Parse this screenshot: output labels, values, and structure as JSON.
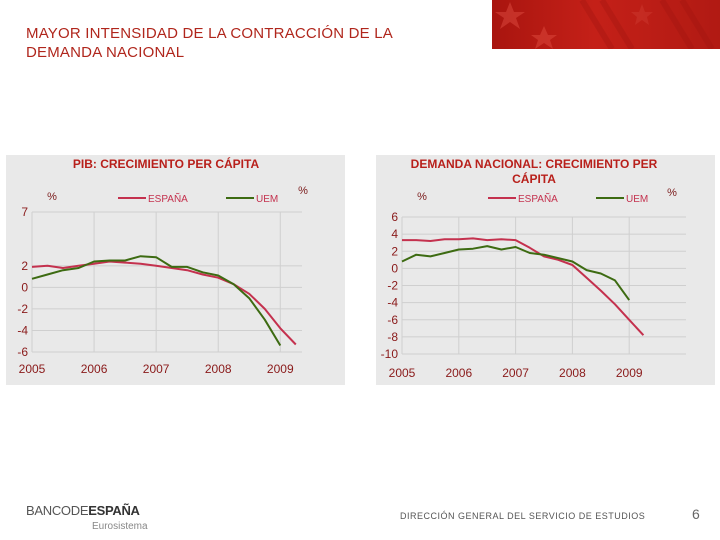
{
  "slide": {
    "title": "MAYOR INTENSIDAD DE LA CONTRACCIÓN DE LA DEMANDA NACIONAL",
    "page_number": "6"
  },
  "footer": {
    "logo_part1": "BANCODE",
    "logo_part2": "ESPAÑA",
    "logo_subtitle": "Eurosistema",
    "department": "DIRECCIÓN GENERAL DEL SERVICIO DE ESTUDIOS"
  },
  "colors": {
    "accent": "#b0261c",
    "espana": "#c4314e",
    "uem": "#3d6b12",
    "chart_title": "#b8201b",
    "panel": "#e9e9e9"
  },
  "chart_data": [
    {
      "type": "line",
      "title": "PIB: CRECIMIENTO PER CÁPITA",
      "ylabel": "%",
      "ylabel_right": "%",
      "ylim": [
        -6,
        7
      ],
      "yticks": [
        7,
        2,
        0,
        -2,
        -4,
        -6
      ],
      "xlim": [
        2005,
        2009.35
      ],
      "xticks": [
        "2005",
        "2006",
        "2007",
        "2008",
        "2009"
      ],
      "xtick_values": [
        2005,
        2006,
        2007,
        2008,
        2009
      ],
      "series": [
        {
          "name": "ESPAÑA",
          "x": [
            2005,
            2005.25,
            2005.5,
            2005.75,
            2006,
            2006.25,
            2006.5,
            2006.75,
            2007,
            2007.25,
            2007.5,
            2007.75,
            2008,
            2008.25,
            2008.5,
            2008.75,
            2009,
            2009.25
          ],
          "values": [
            1.9,
            2.0,
            1.8,
            2.0,
            2.2,
            2.4,
            2.3,
            2.2,
            2.0,
            1.8,
            1.6,
            1.2,
            0.9,
            0.3,
            -0.6,
            -2.0,
            -3.8,
            -5.3
          ]
        },
        {
          "name": "UEM",
          "x": [
            2005,
            2005.25,
            2005.5,
            2005.75,
            2006,
            2006.25,
            2006.5,
            2006.75,
            2007,
            2007.25,
            2007.5,
            2007.75,
            2008,
            2008.25,
            2008.5,
            2008.75,
            2009
          ],
          "values": [
            0.8,
            1.2,
            1.6,
            1.8,
            2.4,
            2.5,
            2.5,
            2.9,
            2.8,
            1.9,
            1.9,
            1.4,
            1.1,
            0.3,
            -1.0,
            -3.0,
            -5.4
          ]
        }
      ]
    },
    {
      "type": "line",
      "title": "DEMANDA NACIONAL: CRECIMIENTO PER CÁPITA",
      "ylabel": "%",
      "ylabel_right": "%",
      "ylim": [
        -10,
        6
      ],
      "yticks": [
        6,
        4,
        2,
        0,
        -2,
        -4,
        -6,
        -8,
        -10
      ],
      "xlim": [
        2005,
        2010
      ],
      "xticks": [
        "2005",
        "2006",
        "2007",
        "2008",
        "2009"
      ],
      "xtick_values": [
        2005,
        2006,
        2007,
        2008,
        2009
      ],
      "series": [
        {
          "name": "ESPAÑA",
          "x": [
            2005,
            2005.25,
            2005.5,
            2005.75,
            2006,
            2006.25,
            2006.5,
            2006.75,
            2007,
            2007.25,
            2007.5,
            2007.75,
            2008,
            2008.25,
            2008.5,
            2008.75,
            2009,
            2009.25
          ],
          "values": [
            3.3,
            3.3,
            3.2,
            3.4,
            3.4,
            3.5,
            3.3,
            3.4,
            3.3,
            2.4,
            1.4,
            1.0,
            0.4,
            -1.1,
            -2.6,
            -4.2,
            -6.0,
            -7.8
          ]
        },
        {
          "name": "UEM",
          "x": [
            2005,
            2005.25,
            2005.5,
            2005.75,
            2006,
            2006.25,
            2006.5,
            2006.75,
            2007,
            2007.25,
            2007.5,
            2007.75,
            2008,
            2008.25,
            2008.5,
            2008.75,
            2009
          ],
          "values": [
            0.8,
            1.6,
            1.4,
            1.8,
            2.2,
            2.3,
            2.6,
            2.2,
            2.5,
            1.8,
            1.6,
            1.2,
            0.8,
            -0.2,
            -0.6,
            -1.4,
            -3.7
          ]
        }
      ]
    }
  ]
}
